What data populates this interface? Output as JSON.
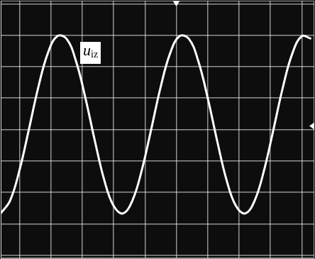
{
  "chart_data": {
    "type": "line",
    "annotations": [
      {
        "text": "u",
        "subscript": "iz"
      }
    ],
    "x": [
      -0.6,
      -0.3,
      0,
      0.3,
      0.6,
      0.9,
      1.2,
      1.5,
      1.8,
      2.1,
      2.4,
      2.7,
      3.0,
      3.3,
      3.6,
      3.9,
      4.2,
      4.5,
      4.8,
      5.1,
      5.4,
      5.7,
      6.0,
      6.3,
      6.6,
      6.9,
      7.2,
      7.5,
      7.8,
      8.1,
      8.4,
      8.7,
      9.0,
      9.3
    ],
    "series": [
      {
        "color": "#ffffff",
        "values": [
          -2.67,
          -2.26,
          -1.29,
          0.01,
          1.35,
          2.42,
          2.97,
          2.89,
          2.18,
          1.01,
          -0.35,
          -1.6,
          -2.43,
          -2.67,
          -2.26,
          -1.29,
          0.01,
          1.35,
          2.42,
          2.97,
          2.89,
          2.18,
          1.01,
          -0.35,
          -1.6,
          -2.43,
          -2.67,
          -2.26,
          -1.29,
          0.01,
          1.35,
          2.42,
          2.97,
          2.89
        ]
      }
    ],
    "xlim": [
      -0.6,
      9.4
    ],
    "xticks": [
      0,
      1,
      2,
      3,
      4,
      5,
      6,
      7,
      8,
      9
    ],
    "ylim": [
      -4.1,
      4.1
    ],
    "yticks": [
      -4,
      -3,
      -2,
      -1,
      0,
      1,
      2,
      3,
      4
    ],
    "grid": true,
    "tick_labels": false
  }
}
